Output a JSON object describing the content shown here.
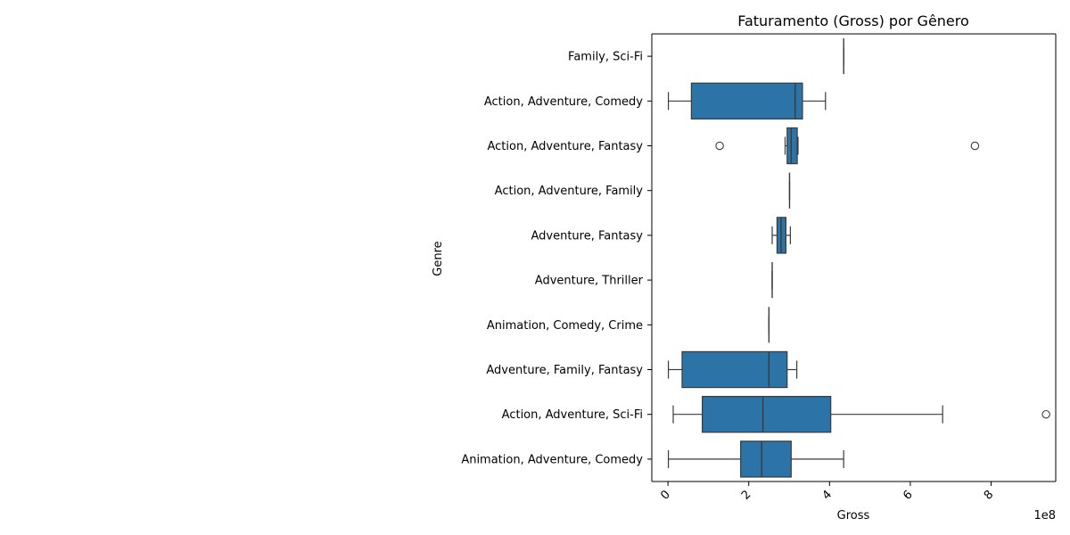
{
  "chart_data": {
    "type": "boxplot",
    "title": "Faturamento (Gross) por Gênero",
    "xlabel": "Gross",
    "ylabel": "Genre",
    "x_scale_label": "1e8",
    "xlim": [
      -0.4,
      9.6
    ],
    "x_ticks": [
      0,
      2,
      4,
      6,
      8
    ],
    "x_tick_labels": [
      "0",
      "2",
      "4",
      "6",
      "8"
    ],
    "x_unit_multiplier": 100000000,
    "orientation": "horizontal",
    "grid": false,
    "colors": {
      "box": "#2c73a8",
      "line": "#3a3a3a",
      "axis": "#000000"
    },
    "categories": [
      "Family, Sci-Fi",
      "Action, Adventure, Comedy",
      "Action, Adventure, Fantasy",
      "Action, Adventure, Family",
      "Adventure, Fantasy",
      "Adventure, Thriller",
      "Animation, Comedy, Crime",
      "Adventure, Family, Fantasy",
      "Action, Adventure, Sci-Fi",
      "Animation, Adventure, Comedy"
    ],
    "boxes": [
      {
        "category": "Family, Sci-Fi",
        "whisker_low": 4.35,
        "q1": 4.35,
        "median": 4.35,
        "q3": 4.35,
        "whisker_high": 4.35,
        "outliers": []
      },
      {
        "category": "Action, Adventure, Comedy",
        "whisker_low": 0.01,
        "q1": 0.58,
        "median": 3.15,
        "q3": 3.33,
        "whisker_high": 3.9,
        "outliers": []
      },
      {
        "category": "Action, Adventure, Fantasy",
        "whisker_low": 2.9,
        "q1": 2.95,
        "median": 3.05,
        "q3": 3.2,
        "whisker_high": 3.22,
        "outliers": [
          1.28,
          7.6
        ]
      },
      {
        "category": "Action, Adventure, Family",
        "whisker_low": 3.01,
        "q1": 3.01,
        "median": 3.01,
        "q3": 3.01,
        "whisker_high": 3.01,
        "outliers": []
      },
      {
        "category": "Adventure, Fantasy",
        "whisker_low": 2.58,
        "q1": 2.7,
        "median": 2.8,
        "q3": 2.92,
        "whisker_high": 3.03,
        "outliers": []
      },
      {
        "category": "Adventure, Thriller",
        "whisker_low": 2.58,
        "q1": 2.58,
        "median": 2.58,
        "q3": 2.58,
        "whisker_high": 2.58,
        "outliers": []
      },
      {
        "category": "Animation, Comedy, Crime",
        "whisker_low": 2.5,
        "q1": 2.5,
        "median": 2.5,
        "q3": 2.5,
        "whisker_high": 2.5,
        "outliers": []
      },
      {
        "category": "Adventure, Family, Fantasy",
        "whisker_low": 0.01,
        "q1": 0.35,
        "median": 2.5,
        "q3": 2.95,
        "whisker_high": 3.19,
        "outliers": []
      },
      {
        "category": "Action, Adventure, Sci-Fi",
        "whisker_low": 0.13,
        "q1": 0.85,
        "median": 2.35,
        "q3": 4.03,
        "whisker_high": 6.8,
        "outliers": [
          9.36
        ]
      },
      {
        "category": "Animation, Adventure, Comedy",
        "whisker_low": 0.01,
        "q1": 1.8,
        "median": 2.32,
        "q3": 3.05,
        "whisker_high": 4.35,
        "outliers": []
      }
    ]
  }
}
